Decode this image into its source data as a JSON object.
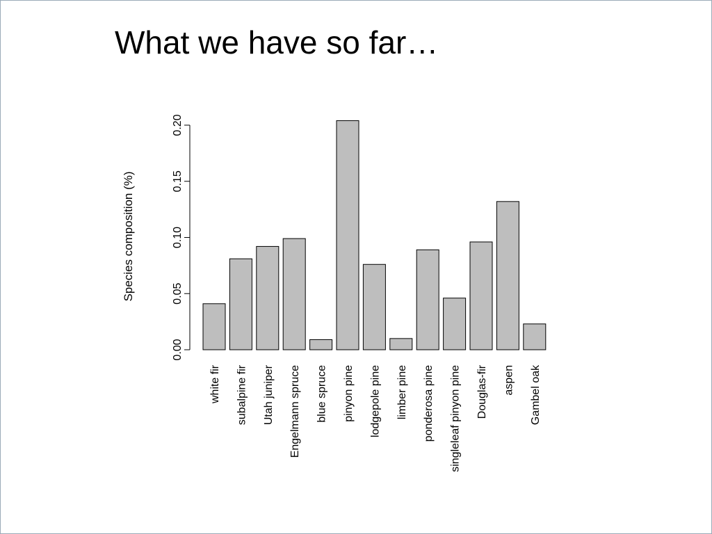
{
  "slide": {
    "title": "What we have so far…"
  },
  "chart_data": {
    "type": "bar",
    "title": "",
    "xlabel": "",
    "ylabel": "Species composition (%)",
    "ylim": [
      0,
      0.2
    ],
    "yticks": [
      "0.00",
      "0.05",
      "0.10",
      "0.15",
      "0.20"
    ],
    "categories": [
      "white fir",
      "subalpine fir",
      "Utah juniper",
      "Engelmann spruce",
      "blue spruce",
      "pinyon pine",
      "lodgepole pine",
      "limber pine",
      "ponderosa pine",
      "singleleaf pinyon pine",
      "Douglas-fir",
      "aspen",
      "Gambel oak"
    ],
    "values": [
      0.041,
      0.081,
      0.092,
      0.099,
      0.009,
      0.204,
      0.076,
      0.01,
      0.089,
      0.046,
      0.096,
      0.132,
      0.023
    ],
    "grid": false,
    "bar_color": "#bebebe",
    "bar_edge_color": "#000000"
  }
}
